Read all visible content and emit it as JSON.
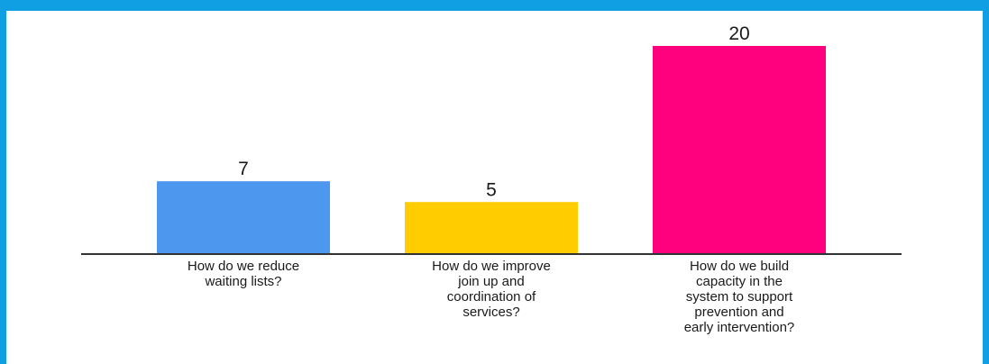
{
  "chart_data": {
    "type": "bar",
    "categories": [
      [
        "How do we reduce",
        "waiting lists?"
      ],
      [
        "How do we improve",
        "join up and",
        "coordination of",
        "services?"
      ],
      [
        "How do we build",
        "capacity in the",
        "system to support",
        "prevention and",
        "early intervention?"
      ]
    ],
    "values": [
      7,
      5,
      20
    ],
    "colors": [
      "#4e97ee",
      "#ffcc00",
      "#ff007f"
    ],
    "title": "",
    "xlabel": "",
    "ylabel": "",
    "ylim": [
      0,
      20
    ],
    "grid": false,
    "legend": "none"
  },
  "frame": {
    "border_color": "#109fe3"
  }
}
